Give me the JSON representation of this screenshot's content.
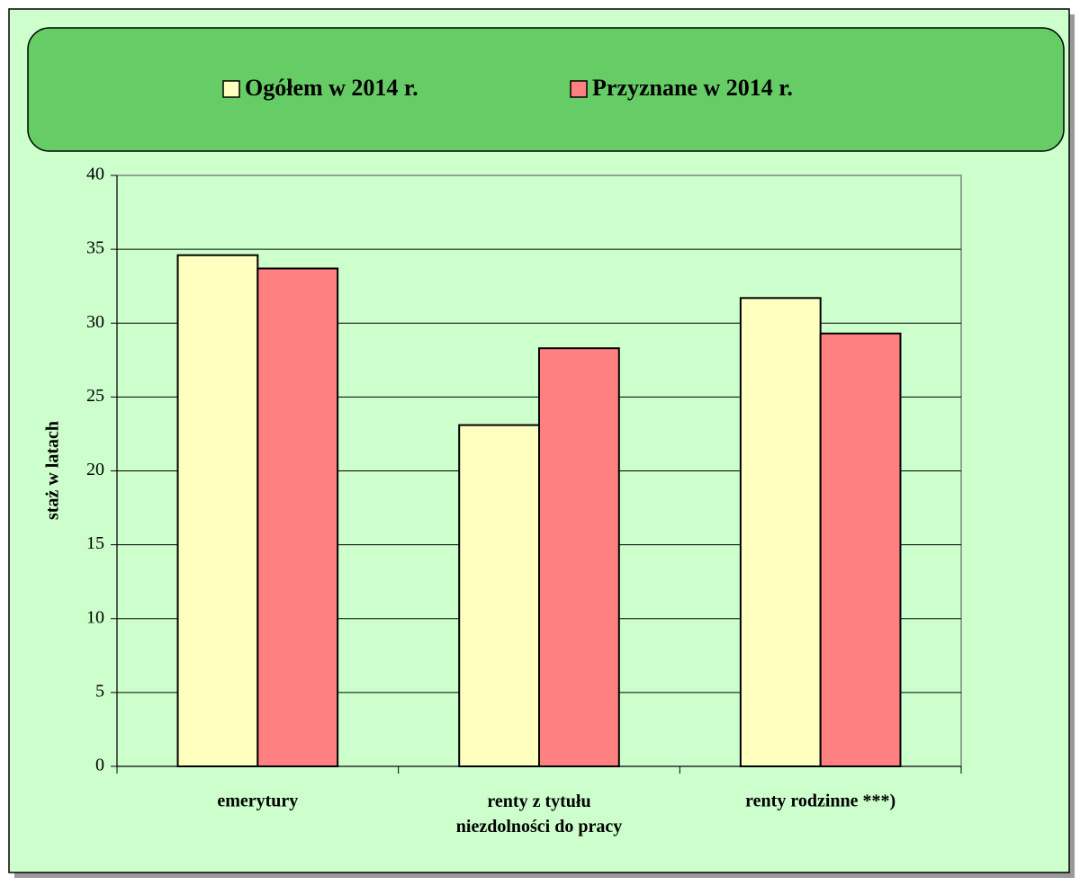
{
  "chart_data": {
    "type": "bar",
    "categories": [
      "emerytury",
      "renty z tytułu\nniezdolności do pracy",
      "renty rodzinne ***)"
    ],
    "series": [
      {
        "name": "Ogółem w 2014 r.",
        "color": "#ffffc0",
        "values": [
          34.6,
          23.1,
          31.7
        ]
      },
      {
        "name": "Przyznane w 2014 r.",
        "color": "#ff8080",
        "values": [
          33.7,
          28.3,
          29.3
        ]
      }
    ],
    "y_label": "staż w latach",
    "ylim": [
      0,
      40
    ],
    "yticks": [
      0,
      5,
      10,
      15,
      20,
      25,
      30,
      35,
      40
    ],
    "grid": true,
    "legend": "top"
  }
}
